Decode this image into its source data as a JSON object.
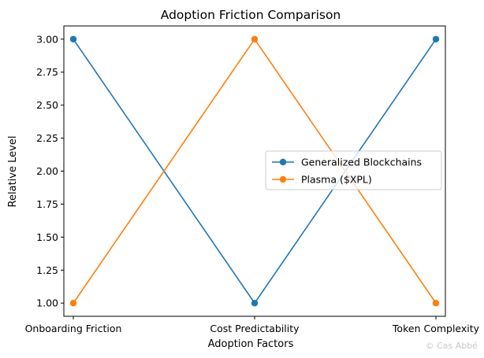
{
  "chart_data": {
    "type": "line",
    "title": "Adoption Friction Comparison",
    "xlabel": "Adoption Factors",
    "ylabel": "Relative Level",
    "categories": [
      "Onboarding Friction",
      "Cost Predictability",
      "Token Complexity"
    ],
    "ylim": [
      0.9,
      3.1
    ],
    "yticks": [
      "1.00",
      "1.25",
      "1.50",
      "1.75",
      "2.00",
      "2.25",
      "2.50",
      "2.75",
      "3.00"
    ],
    "grid": false,
    "legend_position": "center-right",
    "series": [
      {
        "name": "Generalized Blockchains",
        "values": [
          3,
          1,
          3
        ],
        "color": "#1f77b4",
        "marker": "circle"
      },
      {
        "name": "Plasma ($XPL)",
        "values": [
          1,
          3,
          1
        ],
        "color": "#ff7f0e",
        "marker": "circle"
      }
    ]
  },
  "watermark": "© Cas Abbé"
}
